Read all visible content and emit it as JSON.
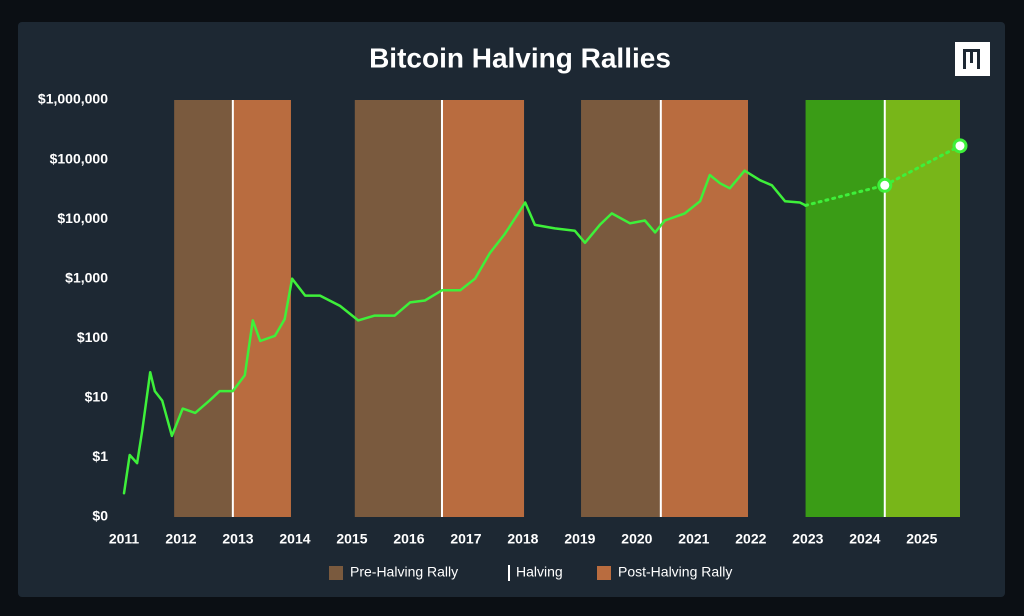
{
  "chart_data": {
    "type": "line",
    "title": "Bitcoin Halving Rallies",
    "log_scale": true,
    "xlim": [
      2011,
      2025.67
    ],
    "xticks": [
      2011,
      2012,
      2013,
      2014,
      2015,
      2016,
      2017,
      2018,
      2019,
      2020,
      2021,
      2022,
      2023,
      2024,
      2025
    ],
    "ylim": [
      0.1,
      1000000
    ],
    "yticks": [
      {
        "value": 0.1,
        "label": "$0"
      },
      {
        "value": 1,
        "label": "$1"
      },
      {
        "value": 10,
        "label": "$10"
      },
      {
        "value": 100,
        "label": "$100"
      },
      {
        "value": 1000,
        "label": "$1,000"
      },
      {
        "value": 10000,
        "label": "$10,000"
      },
      {
        "value": 100000,
        "label": "$100,000"
      },
      {
        "value": 1000000,
        "label": "$1,000,000"
      }
    ],
    "bands": [
      {
        "name": "Pre-Halving Rally",
        "color": "#7a5a3e",
        "spans": [
          [
            2011.88,
            2012.91
          ],
          [
            2015.05,
            2016.58
          ],
          [
            2019.02,
            2020.42
          ]
        ]
      },
      {
        "name": "Post-Halving Rally",
        "color": "#b96c3f",
        "spans": [
          [
            2012.91,
            2013.93
          ],
          [
            2016.58,
            2018.02
          ],
          [
            2020.42,
            2021.95
          ]
        ]
      }
    ],
    "projection_zones": [
      {
        "color": "#3a9c16",
        "span": [
          2022.96,
          2024.35
        ]
      },
      {
        "color": "#78b619",
        "span": [
          2024.35,
          2025.67
        ]
      }
    ],
    "halvings": {
      "name": "Halving",
      "color": "#ffffff",
      "x": [
        2012.91,
        2016.58,
        2020.42,
        2024.35
      ]
    },
    "series": [
      {
        "color": "#3ef03a",
        "style": "solid",
        "x": [
          2011.0,
          2011.1,
          2011.23,
          2011.32,
          2011.46,
          2011.54,
          2011.67,
          2011.84,
          2012.03,
          2012.25,
          2012.5,
          2012.68,
          2012.91,
          2013.12,
          2013.26,
          2013.39,
          2013.65,
          2013.82,
          2013.95,
          2014.18,
          2014.44,
          2014.79,
          2015.11,
          2015.4,
          2015.75,
          2016.02,
          2016.28,
          2016.58,
          2016.9,
          2017.16,
          2017.42,
          2017.68,
          2017.95,
          2018.04,
          2018.21,
          2018.56,
          2018.91,
          2019.09,
          2019.35,
          2019.56,
          2019.88,
          2020.14,
          2020.32,
          2020.49,
          2020.84,
          2021.11,
          2021.28,
          2021.46,
          2021.63,
          2021.89,
          2022.16,
          2022.37,
          2022.6,
          2022.86,
          2022.96
        ],
        "values": [
          0.25,
          1.1,
          0.8,
          2.8,
          27,
          13,
          9,
          2.3,
          6.6,
          5.6,
          9,
          13,
          13,
          24,
          200,
          90,
          110,
          210,
          1000,
          520,
          520,
          350,
          200,
          240,
          240,
          400,
          430,
          640,
          640,
          1000,
          2700,
          5600,
          14000,
          19000,
          8000,
          7000,
          6400,
          4000,
          8000,
          12500,
          8500,
          9500,
          6000,
          9500,
          12500,
          20000,
          55000,
          40000,
          33000,
          65000,
          45000,
          37000,
          20000,
          19000,
          17000
        ]
      },
      {
        "color": "#3ef03a",
        "style": "dotted",
        "markers": true,
        "x": [
          2024.35,
          2025.67
        ],
        "values": [
          37000,
          170000
        ]
      }
    ]
  }
}
